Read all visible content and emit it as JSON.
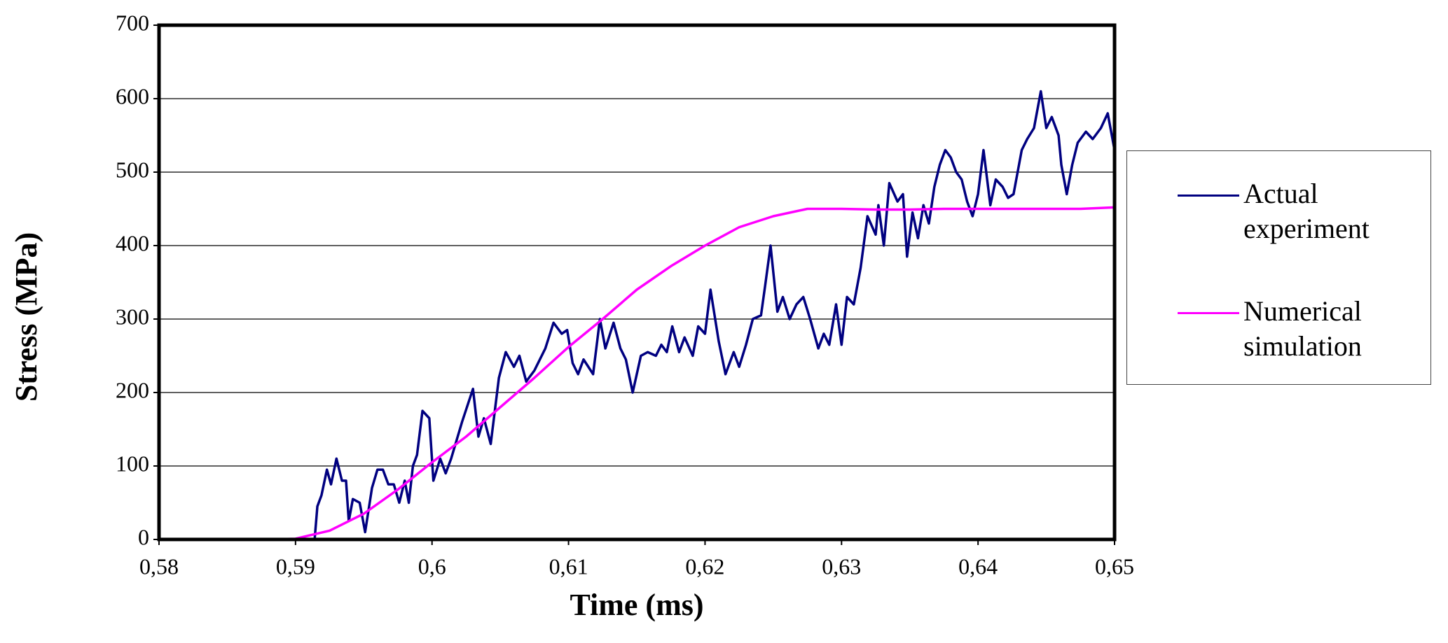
{
  "chart_data": {
    "type": "line",
    "x_label": "Time (ms)",
    "y_label": "Stress (MPa)",
    "xlim": [
      0.58,
      0.65
    ],
    "ylim": [
      0,
      700
    ],
    "xticks": [
      {
        "value": 0.58,
        "label": "0,58"
      },
      {
        "value": 0.59,
        "label": "0,59"
      },
      {
        "value": 0.6,
        "label": "0,6"
      },
      {
        "value": 0.61,
        "label": "0,61"
      },
      {
        "value": 0.62,
        "label": "0,62"
      },
      {
        "value": 0.63,
        "label": "0,63"
      },
      {
        "value": 0.64,
        "label": "0,64"
      },
      {
        "value": 0.65,
        "label": "0,65"
      }
    ],
    "yticks": [
      0,
      100,
      200,
      300,
      400,
      500,
      600,
      700
    ],
    "grid": true,
    "legend": "right",
    "series": [
      {
        "name": "Actual experiment",
        "color": "#000080",
        "x": [
          0.58,
          0.5914,
          0.5916,
          0.5919,
          0.5923,
          0.5926,
          0.593,
          0.5934,
          0.5937,
          0.5939,
          0.5942,
          0.5947,
          0.5951,
          0.5956,
          0.596,
          0.5964,
          0.5968,
          0.5972,
          0.5976,
          0.598,
          0.5983,
          0.5986,
          0.5989,
          0.5993,
          0.5998,
          0.6001,
          0.6006,
          0.601,
          0.6014,
          0.6022,
          0.603,
          0.6034,
          0.6038,
          0.6043,
          0.6049,
          0.6054,
          0.606,
          0.6064,
          0.6069,
          0.6075,
          0.6083,
          0.6089,
          0.6095,
          0.6099,
          0.6103,
          0.6107,
          0.6111,
          0.6118,
          0.6123,
          0.6127,
          0.6133,
          0.6138,
          0.6142,
          0.6147,
          0.6153,
          0.6158,
          0.6164,
          0.6168,
          0.6172,
          0.6176,
          0.6181,
          0.6185,
          0.6191,
          0.6195,
          0.62,
          0.6204,
          0.621,
          0.6215,
          0.6221,
          0.6225,
          0.623,
          0.6235,
          0.6241,
          0.6244,
          0.6248,
          0.6253,
          0.6257,
          0.6262,
          0.6267,
          0.6272,
          0.6277,
          0.6283,
          0.6287,
          0.6291,
          0.6296,
          0.63,
          0.6304,
          0.6309,
          0.6314,
          0.6319,
          0.6325,
          0.6327,
          0.6331,
          0.6335,
          0.6341,
          0.6345,
          0.6348,
          0.6352,
          0.6356,
          0.636,
          0.6364,
          0.6368,
          0.6372,
          0.6376,
          0.638,
          0.6384,
          0.6388,
          0.6392,
          0.6396,
          0.64,
          0.6404,
          0.6409,
          0.6413,
          0.6418,
          0.6422,
          0.6426,
          0.6432,
          0.6436,
          0.6441,
          0.6446,
          0.645,
          0.6454,
          0.6459,
          0.6461,
          0.6465,
          0.6469,
          0.6473,
          0.6479,
          0.6484,
          0.649,
          0.6495,
          0.65
        ],
        "values": [
          0,
          0,
          45,
          60,
          95,
          75,
          110,
          80,
          80,
          25,
          55,
          50,
          10,
          70,
          95,
          95,
          75,
          75,
          50,
          80,
          50,
          100,
          115,
          175,
          165,
          80,
          110,
          90,
          110,
          160,
          205,
          140,
          165,
          130,
          220,
          255,
          235,
          250,
          215,
          230,
          260,
          295,
          280,
          285,
          240,
          225,
          245,
          225,
          300,
          260,
          295,
          260,
          245,
          200,
          250,
          255,
          250,
          265,
          255,
          290,
          255,
          275,
          250,
          290,
          280,
          340,
          270,
          225,
          255,
          235,
          265,
          300,
          305,
          345,
          400,
          310,
          330,
          300,
          320,
          330,
          300,
          260,
          280,
          265,
          320,
          265,
          330,
          320,
          370,
          440,
          415,
          455,
          400,
          485,
          460,
          470,
          385,
          445,
          410,
          455,
          430,
          480,
          510,
          530,
          520,
          500,
          490,
          460,
          440,
          470,
          530,
          455,
          490,
          480,
          465,
          470,
          530,
          545,
          560,
          610,
          560,
          575,
          550,
          510,
          470,
          510,
          540,
          555,
          545,
          560,
          580,
          530
        ]
      },
      {
        "name": "Numerical simulation",
        "color": "#ff00ff",
        "x": [
          0.58,
          0.5825,
          0.585,
          0.5875,
          0.59,
          0.5925,
          0.595,
          0.5975,
          0.6,
          0.6025,
          0.605,
          0.6075,
          0.61,
          0.6125,
          0.615,
          0.6175,
          0.62,
          0.6225,
          0.625,
          0.6275,
          0.63,
          0.6325,
          0.635,
          0.6375,
          0.64,
          0.6425,
          0.645,
          0.6475,
          0.65
        ],
        "values": [
          0,
          0,
          0,
          0,
          1,
          12,
          35,
          68,
          105,
          140,
          180,
          220,
          262,
          300,
          340,
          372,
          400,
          425,
          440,
          450,
          450,
          449,
          449,
          450,
          450,
          450,
          450,
          450,
          452
        ]
      }
    ]
  }
}
